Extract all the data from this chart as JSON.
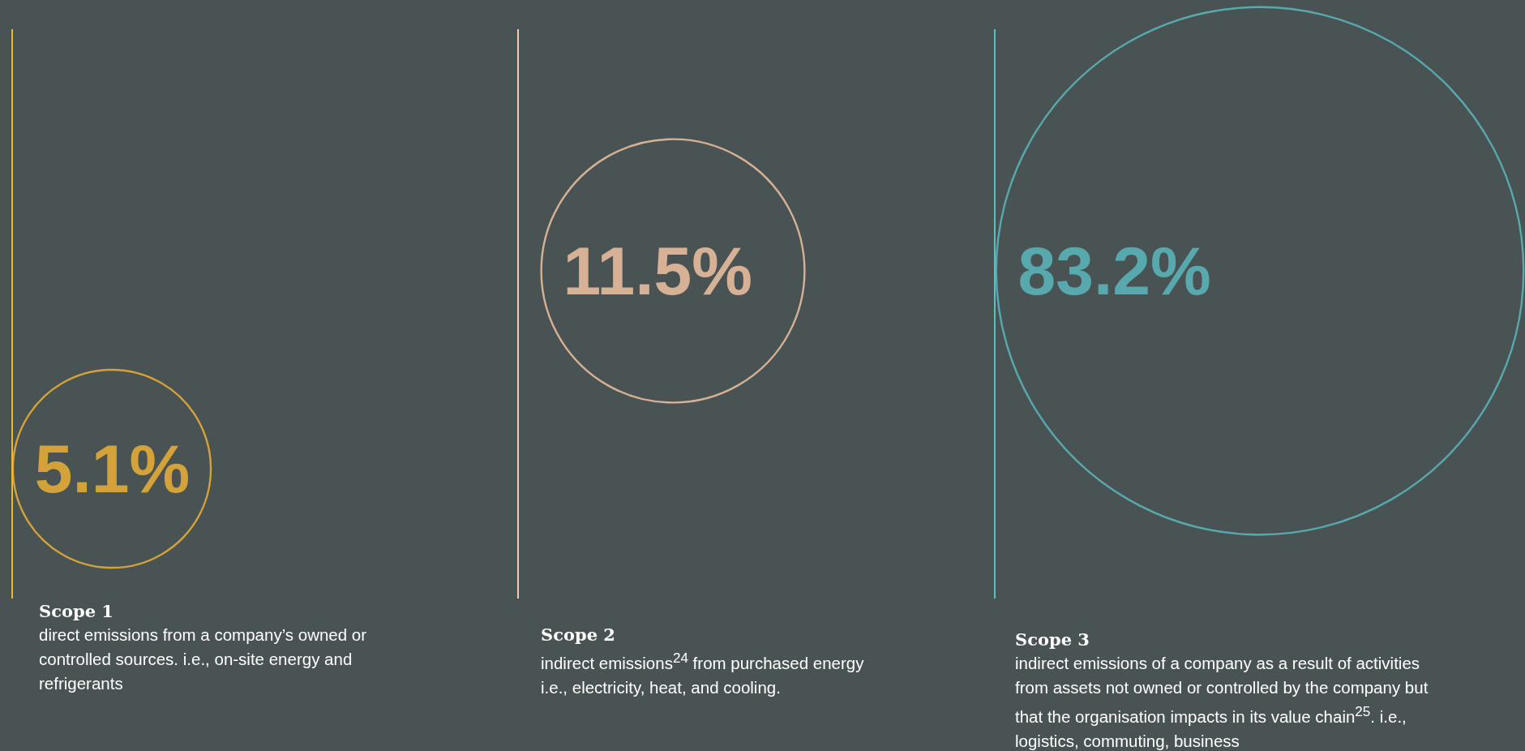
{
  "chart_data": {
    "type": "other",
    "categories": [
      "Scope 1",
      "Scope 2",
      "Scope 3"
    ],
    "values": [
      5.1,
      11.5,
      83.2
    ],
    "value_labels": [
      "5.1%",
      "11.5%",
      "83.2%"
    ],
    "colors": [
      "#f5b731",
      "#f9c9a5",
      "#5bbfc3"
    ],
    "annotations": [
      "direct emissions from a company’s owned or controlled sources. i.e., on-site energy and refrigerants",
      "indirect emissions$^{24}$ from purchased energy i.e., electricity, heat, and cooling.",
      "indirect emissions of a company as a result of activities from assets not owned or controlled by the company but that the organisation impacts in its value chain$^{25}$.  i.e., logistics, commuting, business"
    ]
  }
}
